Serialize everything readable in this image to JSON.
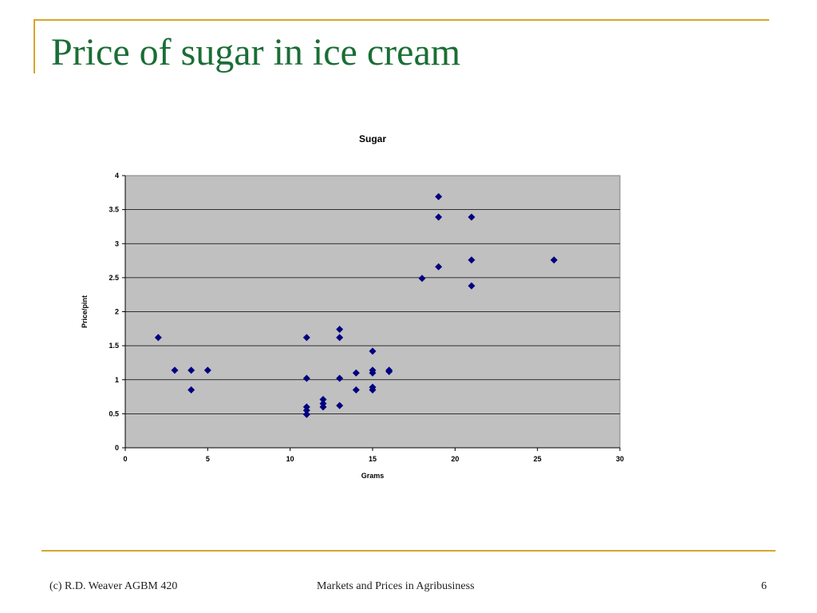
{
  "slide": {
    "title": "Price of  sugar in ice cream",
    "accent_color": "#D8A52C",
    "title_color": "#1A6E35"
  },
  "footer": {
    "left": "(c) R.D. Weaver  AGBM 420",
    "center": "Markets and Prices in Agribusiness",
    "page": "6"
  },
  "chart_data": {
    "type": "scatter",
    "title": "Sugar",
    "xlabel": "Grams",
    "ylabel": "Price/pint",
    "xlim": [
      0,
      30
    ],
    "ylim": [
      0,
      4
    ],
    "xticks": [
      "0",
      "5",
      "10",
      "15",
      "20",
      "25",
      "30"
    ],
    "yticks": [
      "0",
      "0.5",
      "1",
      "1.5",
      "2",
      "2.5",
      "3",
      "3.5",
      "4"
    ],
    "grid": true,
    "legend": "none",
    "plot_background": "#C0C0C0",
    "marker_color": "#000080",
    "marker": "diamond",
    "points": [
      {
        "x": 2,
        "y": 1.62
      },
      {
        "x": 3,
        "y": 1.14
      },
      {
        "x": 4,
        "y": 1.14
      },
      {
        "x": 4,
        "y": 0.85
      },
      {
        "x": 5,
        "y": 1.14
      },
      {
        "x": 11,
        "y": 1.62
      },
      {
        "x": 11,
        "y": 1.02
      },
      {
        "x": 11,
        "y": 0.6
      },
      {
        "x": 11,
        "y": 0.55
      },
      {
        "x": 11,
        "y": 0.49
      },
      {
        "x": 12,
        "y": 0.71
      },
      {
        "x": 12,
        "y": 0.65
      },
      {
        "x": 12,
        "y": 0.6
      },
      {
        "x": 13,
        "y": 1.74
      },
      {
        "x": 13,
        "y": 1.62
      },
      {
        "x": 13,
        "y": 1.02
      },
      {
        "x": 13,
        "y": 0.62
      },
      {
        "x": 14,
        "y": 1.1
      },
      {
        "x": 14,
        "y": 0.85
      },
      {
        "x": 15,
        "y": 1.42
      },
      {
        "x": 15,
        "y": 1.14
      },
      {
        "x": 15,
        "y": 1.1
      },
      {
        "x": 15,
        "y": 0.89
      },
      {
        "x": 15,
        "y": 0.85
      },
      {
        "x": 16,
        "y": 1.14
      },
      {
        "x": 16,
        "y": 1.12
      },
      {
        "x": 18,
        "y": 2.49
      },
      {
        "x": 19,
        "y": 3.69
      },
      {
        "x": 19,
        "y": 3.39
      },
      {
        "x": 19,
        "y": 2.66
      },
      {
        "x": 21,
        "y": 3.39
      },
      {
        "x": 21,
        "y": 2.76
      },
      {
        "x": 21,
        "y": 2.38
      },
      {
        "x": 26,
        "y": 2.76
      }
    ]
  }
}
